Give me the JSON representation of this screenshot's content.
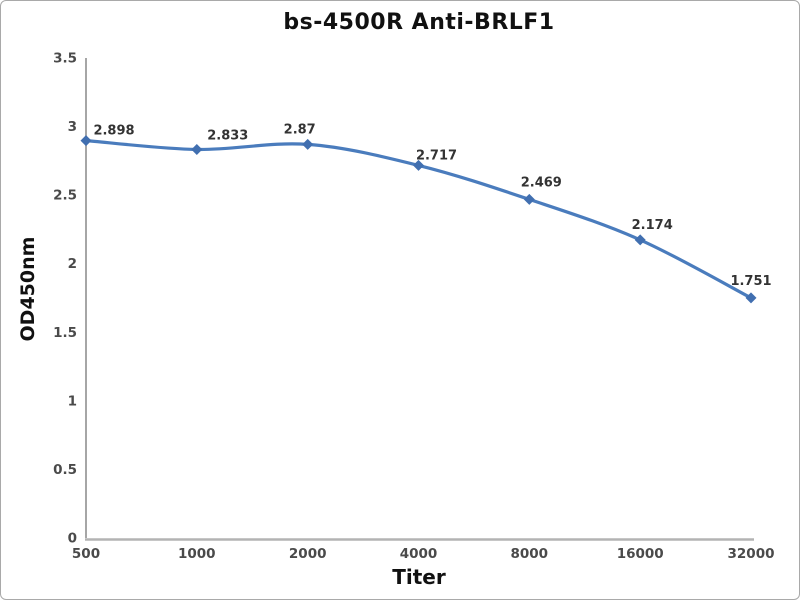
{
  "chart_data": {
    "type": "line",
    "title": "bs-4500R Anti-BRLF1",
    "xlabel": "Titer",
    "ylabel": "OD450nm",
    "categories": [
      500,
      1000,
      2000,
      4000,
      8000,
      16000,
      32000
    ],
    "values": [
      2.898,
      2.833,
      2.87,
      2.717,
      2.469,
      2.174,
      1.751
    ],
    "ylim": [
      0,
      3.5
    ],
    "yticks": [
      0,
      0.5,
      1,
      1.5,
      2,
      2.5,
      3,
      3.5
    ],
    "grid": false,
    "legend_position": "none",
    "line_color": "#4a7cbd",
    "marker_color": "#416fb0",
    "marker": "diamond",
    "x_scale": "log2-categorical"
  }
}
